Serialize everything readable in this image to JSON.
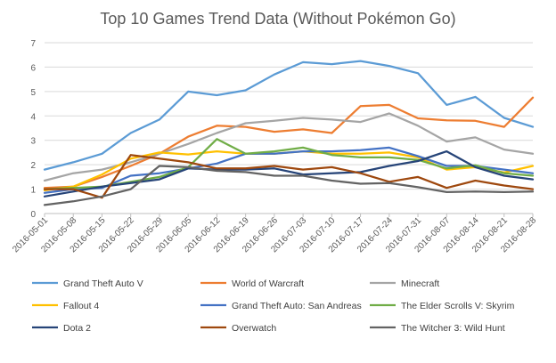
{
  "chart_data": {
    "type": "line",
    "title": "Top 10 Games Trend Data (Without Pokémon Go)",
    "xlabel": "",
    "ylabel": "",
    "ylim": [
      0,
      7
    ],
    "yticks": [
      0,
      1,
      2,
      3,
      4,
      5,
      6,
      7
    ],
    "grid": true,
    "legend_position": "bottom",
    "x": [
      "2016-05-01",
      "2016-05-08",
      "2016-05-15",
      "2016-05-22",
      "2016-05-29",
      "2016-06-05",
      "2016-06-12",
      "2016-06-19",
      "2016-06-26",
      "2016-07-03",
      "2016-07-10",
      "2016-07-17",
      "2016-07-24",
      "2016-07-31",
      "2016-08-07",
      "2016-08-14",
      "2016-08-21",
      "2016-08-28"
    ],
    "series": [
      {
        "name": "Grand Theft Auto V",
        "color": "#5b9bd5",
        "values": [
          1.8,
          2.1,
          2.45,
          3.3,
          3.85,
          5.0,
          4.85,
          5.05,
          5.7,
          6.2,
          6.12,
          6.25,
          6.05,
          5.75,
          4.45,
          4.78,
          3.92,
          3.55
        ]
      },
      {
        "name": "World of Warcraft",
        "color": "#ed7d31",
        "values": [
          1.05,
          1.1,
          1.5,
          1.95,
          2.45,
          3.15,
          3.6,
          3.55,
          3.35,
          3.45,
          3.3,
          4.4,
          4.45,
          3.9,
          3.82,
          3.8,
          3.55,
          4.75
        ]
      },
      {
        "name": "Minecraft",
        "color": "#a5a5a5",
        "values": [
          1.35,
          1.65,
          1.8,
          2.1,
          2.45,
          2.85,
          3.3,
          3.7,
          3.8,
          3.92,
          3.85,
          3.75,
          4.1,
          3.6,
          2.95,
          3.12,
          2.62,
          2.45
        ]
      },
      {
        "name": "Fallout 4",
        "color": "#ffc000",
        "values": [
          0.95,
          1.1,
          1.6,
          2.25,
          2.5,
          2.42,
          2.55,
          2.45,
          2.45,
          2.55,
          2.45,
          2.45,
          2.5,
          2.3,
          1.8,
          1.9,
          1.68,
          1.95
        ]
      },
      {
        "name": "Grand Theft Auto: San Andreas",
        "color": "#4472c4",
        "values": [
          0.85,
          1.0,
          1.05,
          1.55,
          1.65,
          1.85,
          2.05,
          2.45,
          2.45,
          2.55,
          2.55,
          2.6,
          2.7,
          2.35,
          1.95,
          1.95,
          1.8,
          1.65
        ]
      },
      {
        "name": "The Elder Scrolls V: Skyrim",
        "color": "#70ad47",
        "values": [
          1.0,
          1.05,
          1.1,
          1.3,
          1.5,
          1.9,
          3.05,
          2.45,
          2.55,
          2.7,
          2.4,
          2.3,
          2.3,
          2.2,
          1.85,
          1.98,
          1.65,
          1.55
        ]
      },
      {
        "name": "Dota 2",
        "color": "#264478",
        "values": [
          0.7,
          0.9,
          1.1,
          1.25,
          1.4,
          1.85,
          1.8,
          1.8,
          1.85,
          1.6,
          1.65,
          1.7,
          1.95,
          2.15,
          2.55,
          1.9,
          1.55,
          1.4
        ]
      },
      {
        "name": "Overwatch",
        "color": "#9e480e",
        "values": [
          1.0,
          1.0,
          0.65,
          2.4,
          2.25,
          2.1,
          1.85,
          1.85,
          1.95,
          1.8,
          1.9,
          1.65,
          1.3,
          1.5,
          1.05,
          1.35,
          1.15,
          1.0
        ]
      },
      {
        "name": "The Witcher 3: Wild Hunt",
        "color": "#636363",
        "values": [
          0.35,
          0.5,
          0.7,
          1.0,
          1.95,
          1.9,
          1.75,
          1.7,
          1.55,
          1.55,
          1.35,
          1.22,
          1.25,
          1.08,
          0.88,
          0.9,
          0.88,
          0.9
        ]
      }
    ]
  }
}
